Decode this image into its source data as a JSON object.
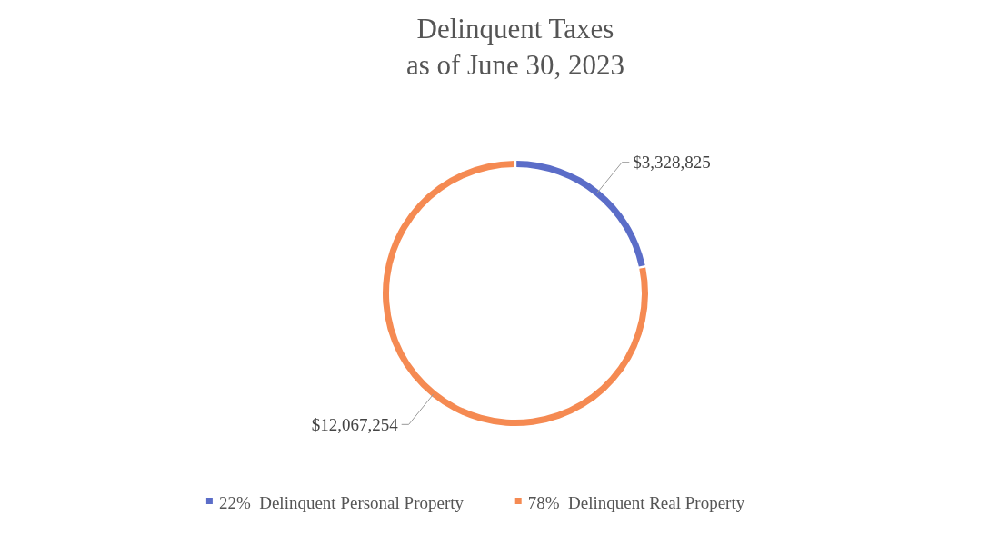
{
  "chart_data": {
    "type": "donut",
    "title": "Delinquent Taxes\nas of June 30, 2023",
    "categories": [
      "22%  Delinquent Personal Property",
      "78%  Delinquent Real Property"
    ],
    "values": [
      3328825,
      12067254
    ],
    "colors": [
      "#5b6dc8",
      "#f58a52"
    ],
    "value_labels": [
      "$3,328,825",
      "$12,067,254"
    ],
    "legend": "bottom"
  }
}
